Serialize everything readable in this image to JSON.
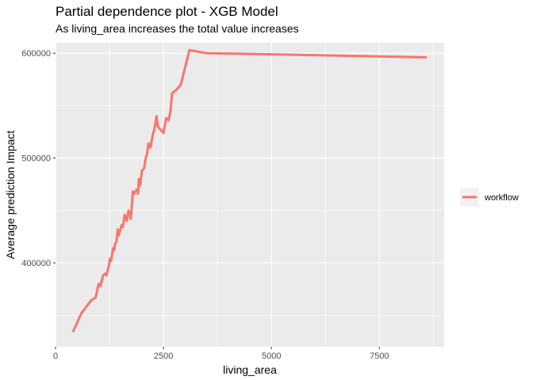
{
  "chart_data": {
    "type": "line",
    "title": "Partial dependence plot - XGB Model",
    "subtitle": "As living_area increases the total value increases",
    "xlabel": "living_area",
    "ylabel": "Average prediction Impact",
    "xlim": [
      0,
      9000
    ],
    "ylim": [
      320000,
      610000
    ],
    "x_ticks": [
      0,
      2500,
      5000,
      7500
    ],
    "x_tick_labels": [
      "0",
      "2500",
      "5000",
      "7500"
    ],
    "y_ticks": [
      400000,
      500000,
      600000
    ],
    "y_tick_labels": [
      "400000",
      "500000",
      "600000"
    ],
    "grid": true,
    "legend": {
      "position": "right",
      "entries": [
        "workflow"
      ]
    },
    "series": [
      {
        "name": "workflow",
        "color": "#f8766d",
        "x": [
          400,
          600,
          820,
          930,
          960,
          1000,
          1040,
          1100,
          1160,
          1180,
          1220,
          1240,
          1260,
          1290,
          1330,
          1360,
          1380,
          1410,
          1440,
          1460,
          1490,
          1530,
          1560,
          1600,
          1620,
          1650,
          1690,
          1720,
          1740,
          1760,
          1790,
          1820,
          1850,
          1880,
          1910,
          1930,
          1960,
          2000,
          2050,
          2090,
          2120,
          2150,
          2200,
          2250,
          2290,
          2340,
          2370,
          2500,
          2560,
          2620,
          2660,
          2700,
          2800,
          2900,
          3100,
          3500,
          5000,
          8600
        ],
        "y": [
          334000,
          352000,
          364000,
          367000,
          373000,
          380000,
          378000,
          388000,
          390000,
          388000,
          395000,
          398000,
          404000,
          402000,
          414000,
          412000,
          418000,
          420000,
          432000,
          426000,
          430000,
          436000,
          434000,
          446000,
          444000,
          440000,
          450000,
          446000,
          442000,
          450000,
          468000,
          466000,
          468000,
          470000,
          466000,
          480000,
          474000,
          488000,
          490000,
          500000,
          504000,
          514000,
          510000,
          522000,
          528000,
          540000,
          530000,
          524000,
          538000,
          536000,
          544000,
          562000,
          565000,
          570000,
          603000,
          600000,
          599000,
          596000
        ]
      }
    ]
  }
}
